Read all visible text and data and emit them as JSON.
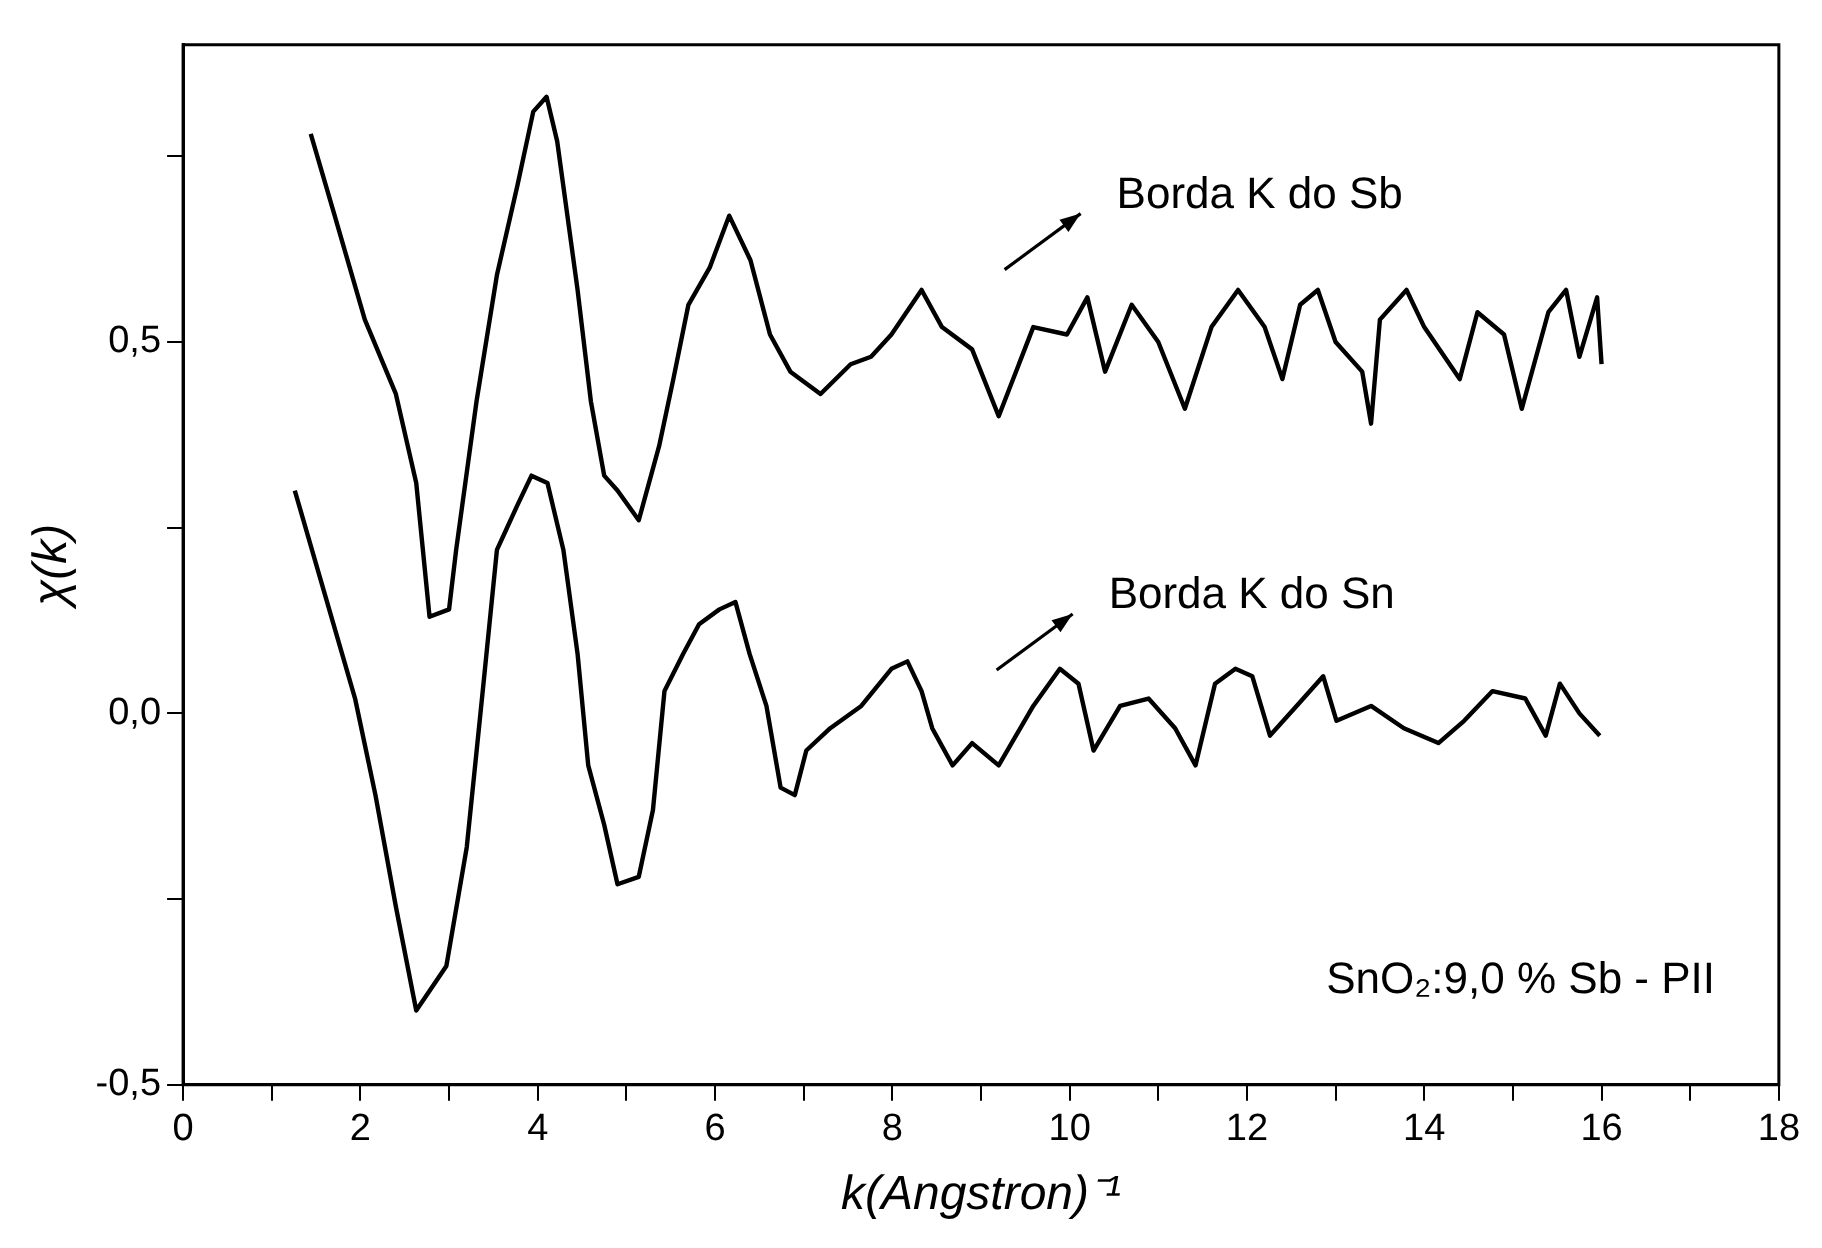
{
  "chart_data": {
    "type": "line",
    "xlabel": "k(Angstron)⁻¹",
    "ylabel": "χ(k)",
    "xlim": [
      0,
      18
    ],
    "xticks": [
      0,
      {
        "value": 1,
        "label": null
      },
      2,
      {
        "value": 3,
        "label": null
      },
      4,
      {
        "value": 5,
        "label": null
      },
      6,
      {
        "value": 7,
        "label": null
      },
      8,
      {
        "value": 9,
        "label": null
      },
      10,
      {
        "value": 11,
        "label": null
      },
      12,
      {
        "value": 13,
        "label": null
      },
      14,
      {
        "value": 15,
        "label": null
      },
      16,
      {
        "value": 17,
        "label": null
      },
      18
    ],
    "ylim": [
      -0.5,
      0.9
    ],
    "yticks": [
      {
        "value": -0.5,
        "label": "-0,5"
      },
      {
        "value": -0.25,
        "label": null
      },
      {
        "value": 0,
        "label": "0,0"
      },
      {
        "value": 0.25,
        "label": null
      },
      {
        "value": 0.5,
        "label": "0,5"
      },
      {
        "value": 0.75,
        "label": null
      }
    ],
    "grid": false,
    "legend": false,
    "marker": "none",
    "line_style": "solid",
    "annotations": [
      "Borda K do Sb",
      "Borda K do Sn",
      "SnO₂:9,0 % Sb - PII"
    ],
    "series": [
      {
        "color": "#000000",
        "x": [
          1.44,
          1.71,
          2.05,
          2.4,
          2.63,
          2.78,
          3.0,
          3.08,
          3.31,
          3.54,
          3.77,
          3.95,
          4.1,
          4.22,
          4.45,
          4.6,
          4.75,
          4.9,
          5.14,
          5.37,
          5.53,
          5.7,
          5.94,
          6.16,
          6.4,
          6.62,
          6.85,
          7.19,
          7.53,
          7.76,
          7.99,
          8.33,
          8.56,
          8.9,
          9.2,
          9.59,
          9.97,
          10.2,
          10.4,
          10.7,
          11.0,
          11.3,
          11.6,
          11.9,
          12.2,
          12.4,
          12.6,
          12.8,
          13.0,
          13.3,
          13.4,
          13.5,
          13.8,
          14.0,
          14.4,
          14.6,
          14.9,
          15.1,
          15.4,
          15.6,
          15.75,
          15.95,
          16.0
        ],
        "values": [
          0.78,
          0.67,
          0.53,
          0.43,
          0.31,
          0.13,
          0.14,
          0.22,
          0.42,
          0.59,
          0.71,
          0.81,
          0.83,
          0.77,
          0.57,
          0.42,
          0.32,
          0.3,
          0.26,
          0.36,
          0.45,
          0.55,
          0.6,
          0.67,
          0.61,
          0.51,
          0.46,
          0.43,
          0.47,
          0.48,
          0.51,
          0.57,
          0.52,
          0.49,
          0.4,
          0.52,
          0.51,
          0.56,
          0.46,
          0.55,
          0.5,
          0.41,
          0.52,
          0.57,
          0.52,
          0.45,
          0.55,
          0.57,
          0.5,
          0.46,
          0.39,
          0.53,
          0.57,
          0.52,
          0.45,
          0.54,
          0.51,
          0.41,
          0.54,
          0.57,
          0.48,
          0.56,
          0.47
        ]
      },
      {
        "color": "#000000",
        "x": [
          1.26,
          1.6,
          1.94,
          2.17,
          2.4,
          2.63,
          2.97,
          3.2,
          3.38,
          3.54,
          3.77,
          3.93,
          4.11,
          4.29,
          4.45,
          4.57,
          4.75,
          4.9,
          5.14,
          5.3,
          5.43,
          5.64,
          5.82,
          6.05,
          6.23,
          6.39,
          6.58,
          6.74,
          6.9,
          7.03,
          7.3,
          7.65,
          7.99,
          8.17,
          8.33,
          8.45,
          8.68,
          8.9,
          9.2,
          9.59,
          9.89,
          10.1,
          10.27,
          10.57,
          10.89,
          11.19,
          11.42,
          11.64,
          11.87,
          12.06,
          12.26,
          12.56,
          12.86,
          13.01,
          13.4,
          13.77,
          14.16,
          14.45,
          14.77,
          15.14,
          15.37,
          15.53,
          15.75,
          15.98
        ],
        "values": [
          0.3,
          0.16,
          0.02,
          -0.11,
          -0.26,
          -0.4,
          -0.34,
          -0.18,
          0.03,
          0.22,
          0.28,
          0.32,
          0.31,
          0.22,
          0.08,
          -0.07,
          -0.15,
          -0.23,
          -0.22,
          -0.13,
          0.03,
          0.08,
          0.12,
          0.14,
          0.15,
          0.08,
          0.01,
          -0.1,
          -0.11,
          -0.05,
          -0.02,
          0.01,
          0.06,
          0.07,
          0.03,
          -0.02,
          -0.07,
          -0.04,
          -0.07,
          0.01,
          0.06,
          0.04,
          -0.05,
          0.01,
          0.02,
          -0.02,
          -0.07,
          0.04,
          0.06,
          0.05,
          -0.03,
          0.01,
          0.05,
          -0.01,
          0.01,
          -0.02,
          -0.04,
          -0.01,
          0.03,
          0.02,
          -0.03,
          0.04,
          0.0,
          -0.03
        ]
      }
    ]
  }
}
